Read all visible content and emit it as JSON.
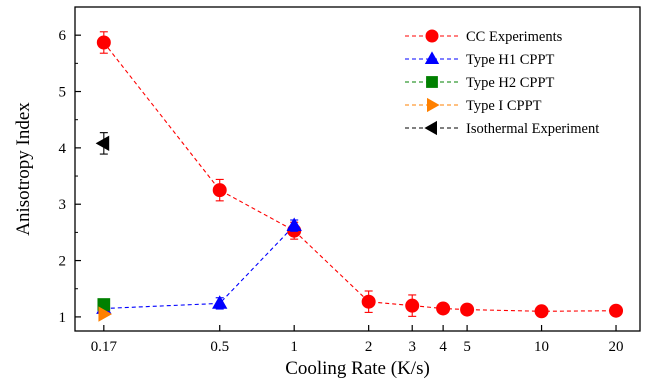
{
  "chart_data": {
    "type": "scatter",
    "xlabel": "Cooling Rate (K/s)",
    "ylabel": "Anisotropy Index",
    "x_scale": "log",
    "xlim": [
      0.13,
      25
    ],
    "ylim": [
      0.75,
      6.5
    ],
    "x_ticks": [
      0.17,
      0.5,
      1,
      2,
      3,
      4,
      5,
      10,
      20
    ],
    "x_tick_labels": [
      "0.17",
      "0.5",
      "1",
      "2",
      "3",
      "4",
      "5",
      "10",
      "20"
    ],
    "y_ticks": [
      1,
      2,
      3,
      4,
      5,
      6
    ],
    "y_tick_labels": [
      "1",
      "2",
      "3",
      "4",
      "5",
      "6"
    ],
    "grid": false,
    "legend_position": "top-right",
    "series": [
      {
        "name": "CC Experiments",
        "marker": "circle",
        "color": "#ff0000",
        "line": "dashed",
        "x": [
          0.17,
          0.5,
          1,
          2,
          3,
          4,
          5,
          10,
          20
        ],
        "y": [
          5.87,
          3.25,
          2.53,
          1.27,
          1.2,
          1.15,
          1.13,
          1.1,
          1.11
        ],
        "error": [
          0.19,
          0.19,
          0.15,
          0.19,
          0.19,
          0.05,
          0.05,
          0.05,
          0.05
        ]
      },
      {
        "name": "Type H1 CPPT",
        "marker": "triangle-up",
        "color": "#0000ff",
        "line": "dashed",
        "x": [
          0.17,
          0.5,
          1
        ],
        "y": [
          1.15,
          1.24,
          2.62
        ],
        "error": [
          0,
          0.1,
          0.1
        ]
      },
      {
        "name": "Type H2 CPPT",
        "marker": "square",
        "color": "#008000",
        "line": "dashed",
        "x": [
          0.17
        ],
        "y": [
          1.22
        ],
        "error": [
          0
        ]
      },
      {
        "name": "Type I CPPT",
        "marker": "triangle-right",
        "color": "#ff8000",
        "line": "dashed",
        "x": [
          0.17
        ],
        "y": [
          1.05
        ],
        "error": [
          0
        ]
      },
      {
        "name": "Isothermal Experiment",
        "marker": "triangle-left",
        "color": "#000000",
        "line": "dashed",
        "x": [
          0.17
        ],
        "y": [
          4.08
        ],
        "error": [
          0.19
        ]
      }
    ]
  }
}
